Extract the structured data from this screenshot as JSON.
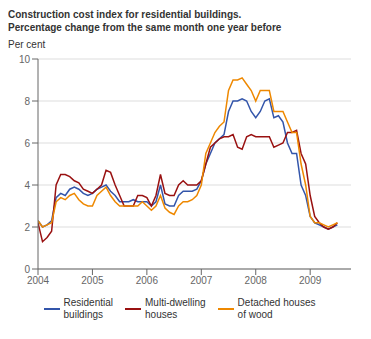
{
  "chart_data": {
    "type": "line",
    "title": "Construction cost index for residential buildings.",
    "subtitle": "Percentage change from the same month one year before",
    "ylabel": "Per cent",
    "xlim": [
      2004.0,
      2009.75
    ],
    "xticks": [
      2004,
      2005,
      2006,
      2007,
      2008,
      2009
    ],
    "ylim": [
      0,
      10
    ],
    "yticks": [
      0,
      2,
      4,
      6,
      8,
      10
    ],
    "grid": true,
    "legend": "bottom",
    "x": [
      2004.0,
      2004.083,
      2004.167,
      2004.25,
      2004.333,
      2004.417,
      2004.5,
      2004.583,
      2004.667,
      2004.75,
      2004.833,
      2004.917,
      2005.0,
      2005.083,
      2005.167,
      2005.25,
      2005.333,
      2005.417,
      2005.5,
      2005.583,
      2005.667,
      2005.75,
      2005.833,
      2005.917,
      2006.0,
      2006.083,
      2006.167,
      2006.25,
      2006.333,
      2006.417,
      2006.5,
      2006.583,
      2006.667,
      2006.75,
      2006.833,
      2006.917,
      2007.0,
      2007.083,
      2007.167,
      2007.25,
      2007.333,
      2007.417,
      2007.5,
      2007.583,
      2007.667,
      2007.75,
      2007.833,
      2007.917,
      2008.0,
      2008.083,
      2008.167,
      2008.25,
      2008.333,
      2008.417,
      2008.5,
      2008.583,
      2008.667,
      2008.75,
      2008.833,
      2008.917,
      2009.0,
      2009.083,
      2009.167,
      2009.25,
      2009.333,
      2009.417,
      2009.5
    ],
    "series": [
      {
        "name": "Residential\nbuildings",
        "color": "#3355aa",
        "values": [
          2.3,
          2.0,
          2.1,
          2.3,
          3.4,
          3.6,
          3.5,
          3.8,
          3.9,
          3.8,
          3.6,
          3.5,
          3.6,
          3.8,
          3.9,
          4.0,
          3.7,
          3.5,
          3.2,
          3.2,
          3.2,
          3.3,
          3.2,
          3.2,
          3.2,
          3.0,
          3.2,
          4.0,
          3.1,
          3.0,
          3.0,
          3.5,
          3.7,
          3.7,
          3.7,
          3.8,
          4.2,
          5.0,
          5.5,
          6.0,
          6.2,
          6.4,
          7.5,
          8.0,
          8.0,
          8.1,
          8.0,
          7.5,
          7.2,
          7.5,
          8.0,
          8.1,
          7.2,
          7.3,
          7.0,
          6.0,
          5.5,
          5.5,
          4.0,
          3.5,
          2.5,
          2.2,
          2.1,
          2.0,
          1.9,
          2.0,
          2.1
        ]
      },
      {
        "name": "Multi-dwelling\nhouses",
        "color": "#991111",
        "values": [
          2.2,
          1.3,
          1.5,
          1.8,
          4.0,
          4.5,
          4.5,
          4.4,
          4.2,
          4.1,
          3.8,
          3.7,
          3.6,
          3.8,
          4.0,
          4.7,
          4.6,
          4.0,
          3.5,
          3.0,
          3.0,
          3.0,
          3.5,
          3.5,
          3.4,
          3.0,
          3.5,
          4.5,
          3.6,
          3.5,
          3.5,
          4.0,
          4.2,
          4.0,
          4.0,
          4.0,
          4.2,
          5.0,
          5.8,
          6.0,
          6.2,
          6.3,
          6.3,
          6.4,
          5.8,
          5.7,
          6.3,
          6.4,
          6.3,
          6.3,
          6.3,
          6.3,
          5.8,
          5.9,
          6.0,
          6.5,
          6.5,
          6.6,
          5.5,
          5.0,
          3.5,
          2.5,
          2.2,
          2.0,
          1.9,
          2.0,
          2.2
        ]
      },
      {
        "name": "Detached houses\nof wood",
        "color": "#ee8800",
        "values": [
          2.3,
          2.0,
          2.1,
          2.2,
          3.2,
          3.4,
          3.3,
          3.5,
          3.6,
          3.3,
          3.1,
          3.0,
          3.0,
          3.5,
          3.7,
          3.9,
          3.5,
          3.2,
          3.0,
          3.0,
          3.0,
          3.0,
          3.0,
          3.2,
          3.0,
          2.8,
          3.0,
          3.5,
          2.9,
          2.7,
          2.6,
          3.0,
          3.2,
          3.2,
          3.3,
          3.5,
          4.0,
          5.5,
          6.0,
          6.5,
          6.8,
          7.0,
          8.5,
          9.0,
          9.0,
          9.1,
          8.8,
          8.5,
          8.0,
          8.5,
          8.5,
          8.5,
          7.5,
          7.5,
          7.5,
          7.0,
          6.5,
          6.5,
          5.0,
          4.0,
          2.5,
          2.2,
          2.2,
          2.1,
          2.0,
          2.1,
          2.2
        ]
      }
    ]
  }
}
